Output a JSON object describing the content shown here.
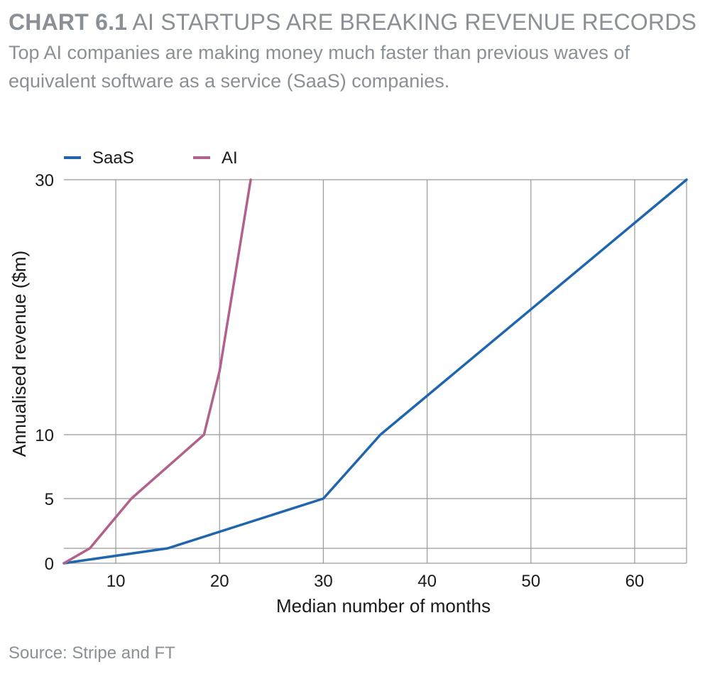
{
  "header": {
    "chart_number": "CHART 6.1",
    "title": "AI STARTUPS ARE BREAKING REVENUE RECORDS",
    "subtitle": "Top AI companies are making money much faster than previous waves of equivalent software as a service (SaaS) companies."
  },
  "source": "Source: Stripe and FT",
  "colors": {
    "saas": "#2166ac",
    "ai": "#b2628a",
    "grid": "#999999",
    "muted_text": "#8a9096"
  },
  "chart_data": {
    "type": "line",
    "xlabel": "Median number of months",
    "ylabel": "Annualised revenue ($m)",
    "xlim": [
      5,
      65
    ],
    "x_ticks": [
      10,
      20,
      30,
      40,
      50,
      60
    ],
    "y_ticks": [
      0,
      1,
      5,
      10,
      30
    ],
    "y_tick_labels": [
      "0",
      "",
      "5",
      "10",
      "30"
    ],
    "y_scale": "piecewise",
    "grid": true,
    "legend_position": "top-left",
    "series": [
      {
        "name": "SaaS",
        "color": "#2166ac",
        "x": [
          5,
          15,
          30,
          35.5,
          65
        ],
        "y": [
          0,
          1,
          5,
          10,
          30
        ]
      },
      {
        "name": "AI",
        "color": "#b2628a",
        "x": [
          5,
          7.5,
          11.5,
          18.5,
          20,
          23
        ],
        "y": [
          0,
          1,
          5,
          10,
          15,
          30
        ]
      }
    ]
  }
}
